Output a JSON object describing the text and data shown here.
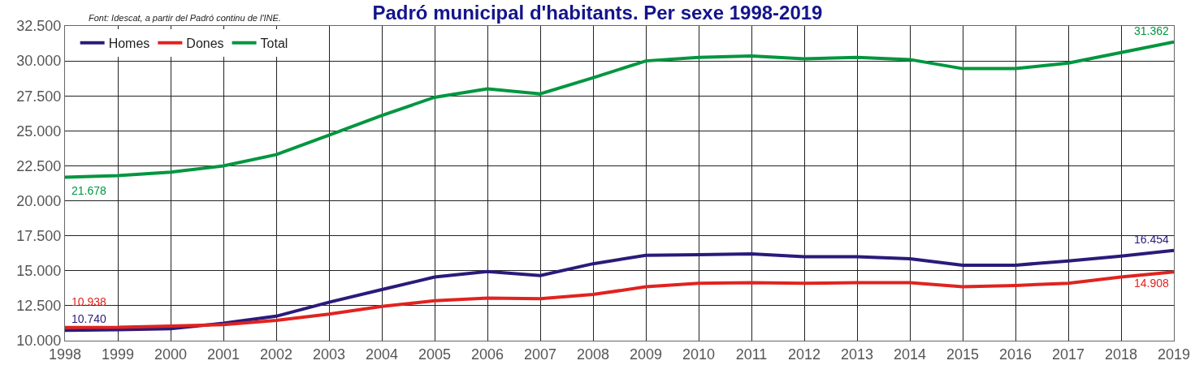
{
  "chart_data": {
    "type": "line",
    "title": "Padró municipal d'habitants. Per sexe 1998-2019",
    "annotations": [
      "Font: Idescat, a partir del Padró continu de l'INE."
    ],
    "x": [
      1998,
      1999,
      2000,
      2001,
      2002,
      2003,
      2004,
      2005,
      2006,
      2007,
      2008,
      2009,
      2010,
      2011,
      2012,
      2013,
      2014,
      2015,
      2016,
      2017,
      2018,
      2019
    ],
    "series": [
      {
        "name": "Homes",
        "color": "#2b1a7a",
        "values": [
          10740,
          10780,
          10850,
          11250,
          11750,
          12750,
          13650,
          14550,
          14950,
          14650,
          15500,
          16100,
          16150,
          16200,
          16000,
          16000,
          15850,
          15400,
          15400,
          15700,
          16050,
          16454
        ],
        "value_labels": [
          "10.740",
          null,
          null,
          null,
          null,
          null,
          null,
          null,
          null,
          null,
          null,
          null,
          null,
          null,
          null,
          null,
          null,
          null,
          null,
          null,
          null,
          "16.454"
        ]
      },
      {
        "name": "Dones",
        "color": "#e0231f",
        "values": [
          10938,
          10950,
          11050,
          11150,
          11450,
          11900,
          12450,
          12850,
          13050,
          13000,
          13300,
          13850,
          14100,
          14150,
          14100,
          14150,
          14150,
          13850,
          13950,
          14100,
          14550,
          14908
        ],
        "value_labels": [
          "10.938",
          null,
          null,
          null,
          null,
          null,
          null,
          null,
          null,
          null,
          null,
          null,
          null,
          null,
          null,
          null,
          null,
          null,
          null,
          null,
          null,
          "14.908"
        ]
      },
      {
        "name": "Total",
        "color": "#00963f",
        "values": [
          21678,
          21800,
          22050,
          22500,
          23300,
          24700,
          26100,
          27400,
          28000,
          27650,
          28800,
          30000,
          30250,
          30350,
          30150,
          30250,
          30100,
          29450,
          29450,
          29850,
          30600,
          31362
        ],
        "value_labels": [
          "21.678",
          null,
          null,
          null,
          null,
          null,
          null,
          null,
          null,
          null,
          null,
          null,
          null,
          null,
          null,
          null,
          null,
          null,
          null,
          null,
          null,
          "31.362"
        ]
      }
    ],
    "xlim": [
      1998,
      2019
    ],
    "xticks": [
      1998,
      1999,
      2000,
      2001,
      2002,
      2003,
      2004,
      2005,
      2006,
      2007,
      2008,
      2009,
      2010,
      2011,
      2012,
      2013,
      2014,
      2015,
      2016,
      2017,
      2018,
      2019
    ],
    "ylim": [
      10000,
      32500
    ],
    "yticks": [
      {
        "value": 10000,
        "label": "10.000"
      },
      {
        "value": 12500,
        "label": "12.500"
      },
      {
        "value": 15000,
        "label": "15.000"
      },
      {
        "value": 17500,
        "label": "17.500"
      },
      {
        "value": 20000,
        "label": "20.000"
      },
      {
        "value": 22500,
        "label": "22.500"
      },
      {
        "value": 25000,
        "label": "25.000"
      },
      {
        "value": 27500,
        "label": "27.500"
      },
      {
        "value": 30000,
        "label": "30.000"
      },
      {
        "value": 32500,
        "label": "32.500"
      }
    ],
    "grid": true,
    "legend": "top left",
    "marker": "none",
    "line_style": "solid"
  }
}
